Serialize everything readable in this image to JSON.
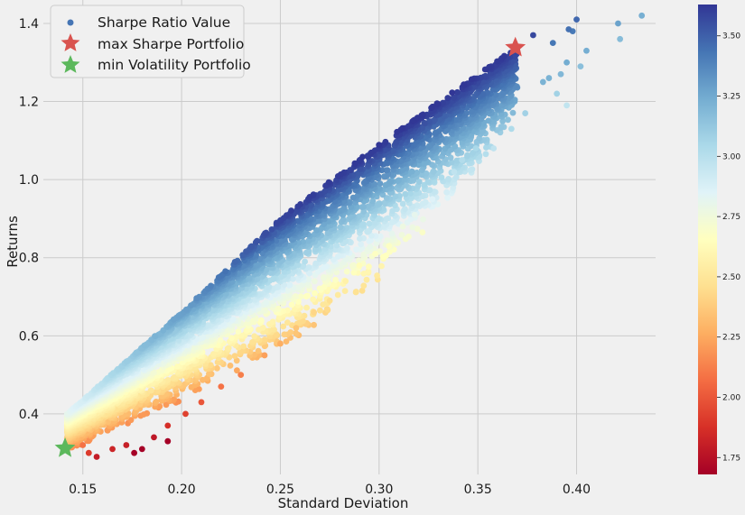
{
  "chart_data": {
    "type": "scatter",
    "xlabel": "Standard Deviation",
    "ylabel": "Returns",
    "xlim": [
      0.13,
      0.44
    ],
    "ylim": [
      0.245,
      1.46
    ],
    "x_ticks": [
      0.15,
      0.2,
      0.25,
      0.3,
      0.35,
      0.4
    ],
    "x_tick_labels": [
      "0.15",
      "0.20",
      "0.25",
      "0.30",
      "0.35",
      "0.40"
    ],
    "y_ticks": [
      0.4,
      0.6,
      0.8,
      1.0,
      1.2,
      1.4
    ],
    "y_tick_labels": [
      "0.4",
      "0.6",
      "0.8",
      "1.0",
      "1.2",
      "1.4"
    ],
    "grid": true,
    "legend_position": "top-left",
    "colormap": "RdYlBu",
    "colorbar": {
      "range": [
        1.68,
        3.63
      ],
      "ticks": [
        1.75,
        2.0,
        2.25,
        2.5,
        2.75,
        3.0,
        3.25,
        3.5
      ],
      "tick_labels": [
        "1.75",
        "2.00",
        "2.25",
        "2.50",
        "2.75",
        "3.00",
        "3.25",
        "3.50"
      ]
    },
    "series": [
      {
        "name": "Sharpe Ratio Value",
        "marker": "circle",
        "color": "#4575b4",
        "description_values": "random portfolios colored by Sharpe ratio",
        "envelope_upper": [
          [
            0.142,
            0.4
          ],
          [
            0.2,
            0.66
          ],
          [
            0.25,
            0.9
          ],
          [
            0.3,
            1.09
          ],
          [
            0.35,
            1.27
          ],
          [
            0.37,
            1.34
          ]
        ],
        "envelope_lower_pts": [
          [
            0.145,
            0.31
          ],
          [
            0.2,
            0.43
          ],
          [
            0.25,
            0.56
          ],
          [
            0.3,
            0.74
          ],
          [
            0.35,
            1.02
          ],
          [
            0.37,
            1.18
          ]
        ],
        "outliers": [
          [
            0.433,
            1.42
          ],
          [
            0.4,
            1.41
          ],
          [
            0.421,
            1.4
          ],
          [
            0.422,
            1.36
          ],
          [
            0.398,
            1.38
          ],
          [
            0.396,
            1.385
          ],
          [
            0.405,
            1.33
          ],
          [
            0.395,
            1.3
          ],
          [
            0.402,
            1.29
          ],
          [
            0.388,
            1.35
          ],
          [
            0.392,
            1.27
          ],
          [
            0.386,
            1.26
          ],
          [
            0.378,
            1.37
          ],
          [
            0.383,
            1.25
          ],
          [
            0.39,
            1.22
          ],
          [
            0.395,
            1.19
          ],
          [
            0.374,
            1.17
          ],
          [
            0.367,
            1.13
          ],
          [
            0.358,
            1.08
          ],
          [
            0.349,
            1.08
          ],
          [
            0.342,
            1.05
          ],
          [
            0.338,
            1.02
          ],
          [
            0.327,
            0.95
          ],
          [
            0.318,
            0.91
          ],
          [
            0.312,
            0.88
          ],
          [
            0.305,
            0.83
          ],
          [
            0.298,
            0.81
          ],
          [
            0.29,
            0.78
          ],
          [
            0.283,
            0.74
          ],
          [
            0.275,
            0.69
          ],
          [
            0.267,
            0.66
          ],
          [
            0.258,
            0.62
          ],
          [
            0.25,
            0.58
          ],
          [
            0.242,
            0.55
          ],
          [
            0.23,
            0.5
          ],
          [
            0.22,
            0.47
          ],
          [
            0.21,
            0.43
          ],
          [
            0.202,
            0.4
          ],
          [
            0.193,
            0.37
          ],
          [
            0.186,
            0.34
          ],
          [
            0.18,
            0.31
          ],
          [
            0.176,
            0.3
          ],
          [
            0.193,
            0.33
          ],
          [
            0.172,
            0.32
          ],
          [
            0.165,
            0.31
          ],
          [
            0.157,
            0.29
          ],
          [
            0.153,
            0.3
          ],
          [
            0.15,
            0.32
          ]
        ]
      },
      {
        "name": "max Sharpe Portfolio",
        "marker": "star",
        "color": "#d9534f",
        "x": 0.369,
        "y": 1.338
      },
      {
        "name": "min Volatility Portfolio",
        "marker": "star",
        "color": "#5cb85c",
        "x": 0.141,
        "y": 0.312
      }
    ]
  }
}
